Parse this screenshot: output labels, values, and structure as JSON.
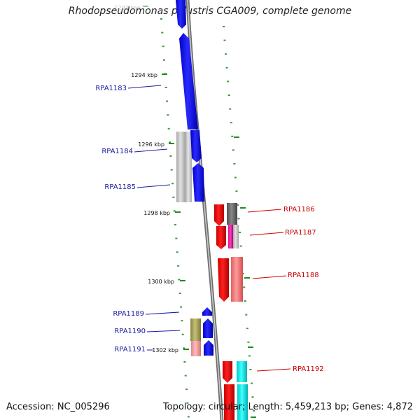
{
  "title": "Rhodopseudomonas palustris CGA009, complete genome",
  "footer": {
    "accession": "Accession: NC_005296",
    "topology_text": "Topology: circular; Length: 5,459,213 bp; Genes: 4,872"
  },
  "colors": {
    "backbone": "#8a8a8a",
    "forward_label": "#1a1aa0",
    "reverse_label": "#cc0000",
    "tick": "#1e8c1e",
    "minor_dot": "#3a9a3a"
  },
  "ruler_labels": [
    {
      "text": "1292 kbp",
      "faded": true
    },
    {
      "text": "1294 kbp",
      "faded": false
    },
    {
      "text": "1296 kbp",
      "faded": false
    },
    {
      "text": "1298 kbp",
      "faded": false
    },
    {
      "text": "1300 kbp",
      "faded": false
    },
    {
      "text": "1302 kbp",
      "faded": false
    }
  ],
  "genes_forward": [
    {
      "name": "RPA1183",
      "color": "#0000ee"
    },
    {
      "name": "RPA1184",
      "color": "#0000ee"
    },
    {
      "name": "RPA1185",
      "color": "#0000ee"
    },
    {
      "name": "RPA1189",
      "color": "#0000ee"
    },
    {
      "name": "RPA1190",
      "color": "#0000ee"
    },
    {
      "name": "RPA1191",
      "color": "#0000ee"
    }
  ],
  "genes_reverse": [
    {
      "name": "RPA1186",
      "color": "#ee0000"
    },
    {
      "name": "RPA1187",
      "color": "#ee0000"
    },
    {
      "name": "RPA1188",
      "color": "#ee0000"
    },
    {
      "name": "RPA1192",
      "color": "#ee0000"
    }
  ]
}
